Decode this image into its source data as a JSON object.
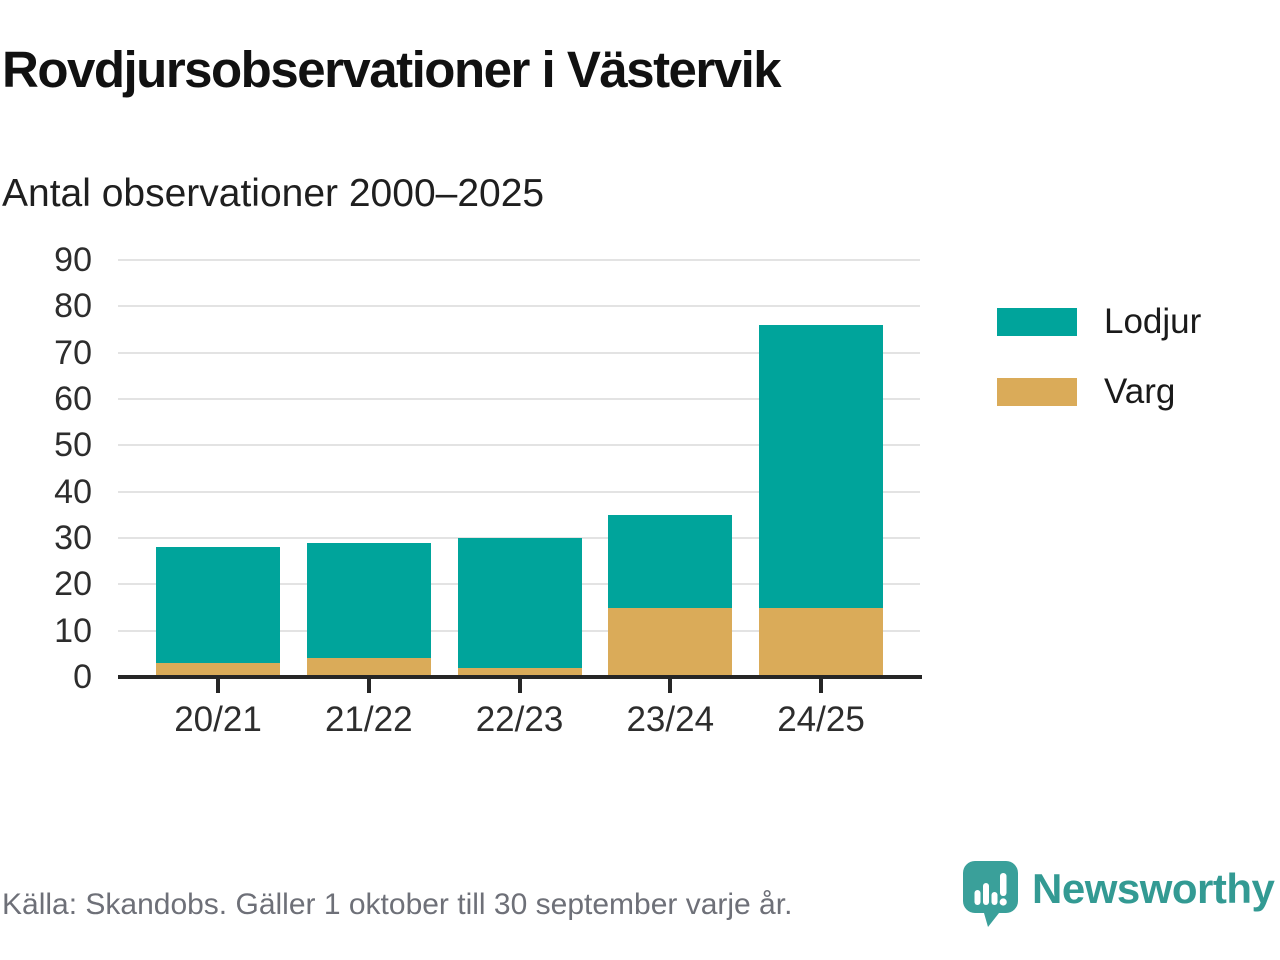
{
  "title": "Rovdjursobservationer i Västervik",
  "subtitle": "Antal observationer 2000–2025",
  "source_note": "Källa: Skandobs. Gäller 1 oktober till 30 september varje år.",
  "brand": {
    "name": "Newsworthy",
    "logo_icon": "speech-bubble-bar-chart-icon",
    "color": "#339a93",
    "logo_fill": "#3aa09a"
  },
  "colors": {
    "lodjur": "#00a49b",
    "varg": "#daab59",
    "axis": "#262626",
    "grid": "#e3e3e3",
    "title_text": "#111111",
    "tick_text": "#2d2d2d",
    "muted_text": "#6e7078"
  },
  "chart_data": {
    "type": "bar",
    "stacked": true,
    "title": "Rovdjursobservationer i Västervik",
    "subtitle": "Antal observationer 2000–2025",
    "categories": [
      "20/21",
      "21/22",
      "22/23",
      "23/24",
      "24/25"
    ],
    "series": [
      {
        "name": "Lodjur",
        "color": "#00a49b",
        "values": [
          25,
          25,
          28,
          20,
          61
        ]
      },
      {
        "name": "Varg",
        "color": "#daab59",
        "values": [
          3,
          4,
          2,
          15,
          15
        ]
      }
    ],
    "stack_order_bottom_to_top": [
      "Varg",
      "Lodjur"
    ],
    "totals": [
      28,
      29,
      30,
      35,
      76
    ],
    "xlabel": "",
    "ylabel": "",
    "ylim": [
      0,
      90
    ],
    "yticks": [
      0,
      10,
      20,
      30,
      40,
      50,
      60,
      70,
      80,
      90
    ],
    "grid": true,
    "legend_position": "right"
  }
}
